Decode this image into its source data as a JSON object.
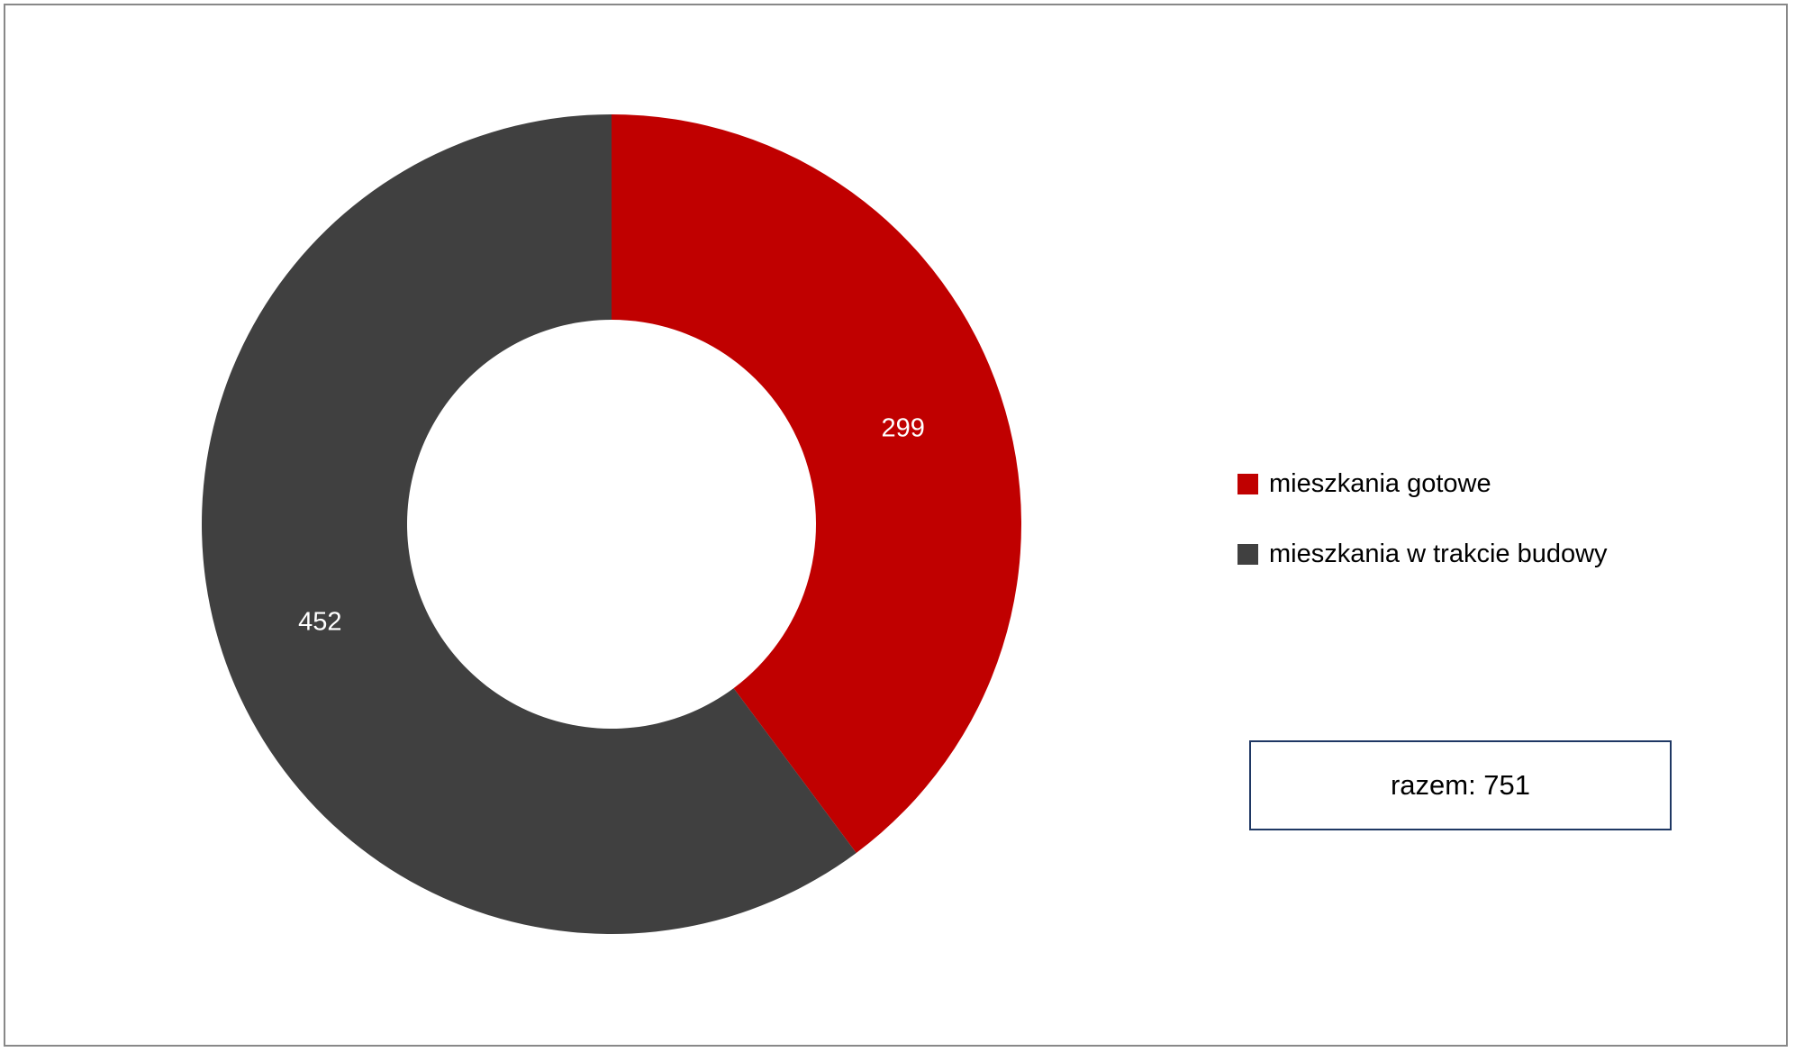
{
  "chart_data": {
    "type": "pie",
    "variant": "donut",
    "categories": [
      "mieszkania gotowe",
      "mieszkania w trakcie budowy"
    ],
    "values": [
      299,
      452
    ],
    "colors": [
      "#c00000",
      "#404040"
    ],
    "legend_position": "right",
    "data_label_color": "#ffffff",
    "total_label": "razem: 751"
  }
}
